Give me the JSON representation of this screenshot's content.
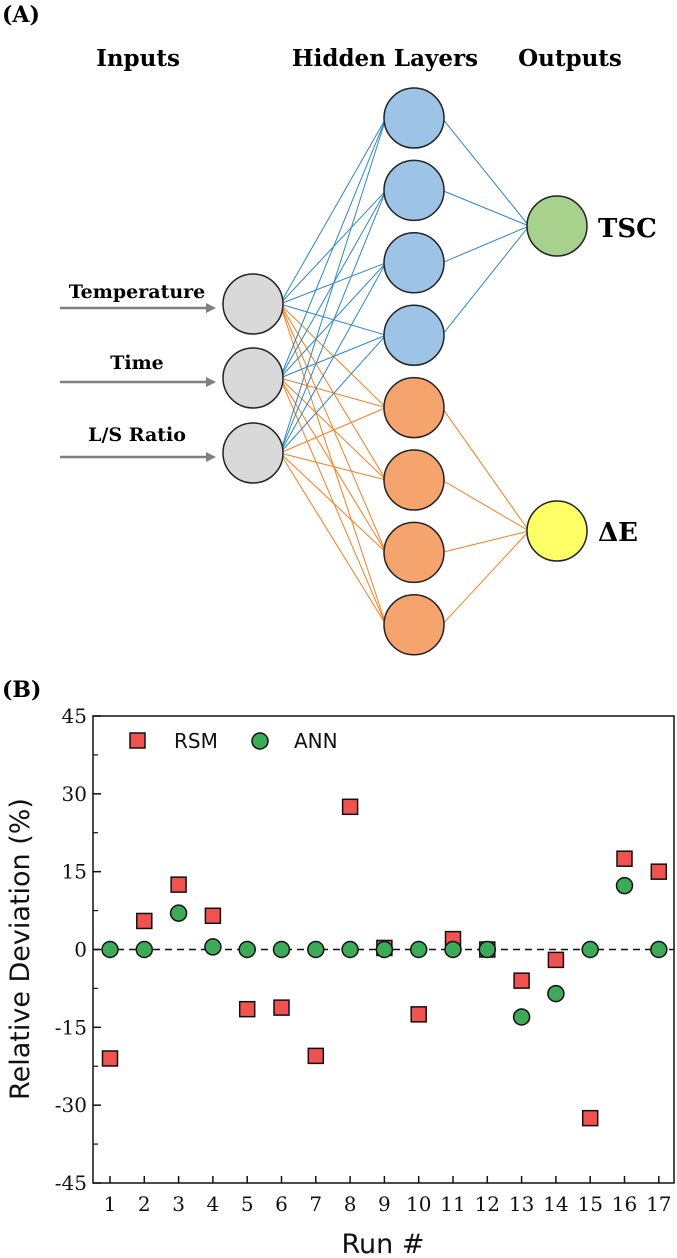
{
  "panel_a": {
    "label": "(A)",
    "headers": {
      "inputs": "Inputs",
      "hidden": "Hidden Layers",
      "outputs": "Outputs"
    },
    "input_labels": [
      "Temperature",
      "Time",
      "L/S Ratio"
    ],
    "output_labels": [
      "TSC",
      "ΔE"
    ],
    "hidden_counts": {
      "blue": 4,
      "orange": 4
    },
    "colors": {
      "input": "#d9d9d9",
      "hidden_blue": "#9dc3e6",
      "hidden_orange": "#f4a46c",
      "output_tsc": "#a9d18e",
      "output_de": "#ffff66",
      "edge_blue": "#2e86c1",
      "edge_orange": "#f07f1e",
      "arrow": "#808080"
    }
  },
  "panel_b": {
    "label": "(B)"
  },
  "chart_data": {
    "type": "scatter",
    "xlabel": "Run #",
    "ylabel": "Relative Deviation (%)",
    "ylim": [
      -45,
      45
    ],
    "yticks": [
      -45,
      -30,
      -15,
      0,
      15,
      30,
      45
    ],
    "x": [
      1,
      2,
      3,
      4,
      5,
      6,
      7,
      8,
      9,
      10,
      11,
      12,
      13,
      14,
      15,
      16,
      17
    ],
    "reference_line": 0,
    "legend_position": "top-left",
    "series": [
      {
        "name": "RSM",
        "marker": "square",
        "color": "#f0524f",
        "values": [
          -21,
          5.5,
          12.5,
          6.5,
          -11.5,
          -11.2,
          -20.5,
          27.5,
          0.3,
          -12.5,
          2,
          0,
          -6,
          -2,
          -32.5,
          17.5,
          15
        ]
      },
      {
        "name": "ANN",
        "marker": "circle",
        "color": "#3daa5a",
        "values": [
          0,
          0,
          7,
          0.5,
          0,
          0,
          0,
          0,
          0,
          0,
          0,
          0,
          -13,
          -8.5,
          0,
          12.3,
          0
        ]
      }
    ]
  }
}
